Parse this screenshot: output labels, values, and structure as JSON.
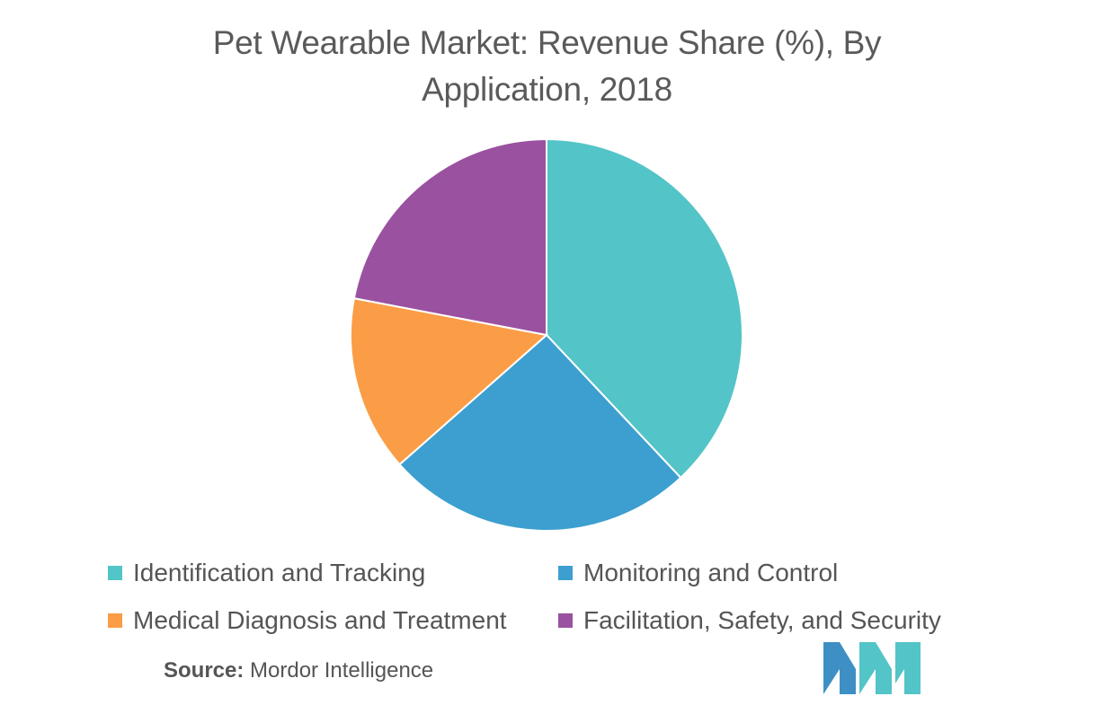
{
  "chart_data": {
    "type": "pie",
    "title_lines": [
      "Pet Wearable Market: Revenue Share (%), By",
      "Application, 2018"
    ],
    "slices": [
      {
        "label": "Identification and Tracking",
        "value": 38,
        "color": "#53c4c7"
      },
      {
        "label": "Monitoring and Control",
        "value": 25.5,
        "color": "#3d9fd0"
      },
      {
        "label": "Medical Diagnosis and Treatment",
        "value": 14.5,
        "color": "#fb9d46"
      },
      {
        "label": "Facilitation, Safety, and Security",
        "value": 22,
        "color": "#9a51a0"
      }
    ],
    "legend_placement": "bottom"
  },
  "source": {
    "label": "Source:",
    "text": " Mordor Intelligence"
  },
  "logo": {
    "icon": "mordor-intelligence-logo",
    "colors": [
      "#3d8fc4",
      "#53c4c7"
    ]
  }
}
